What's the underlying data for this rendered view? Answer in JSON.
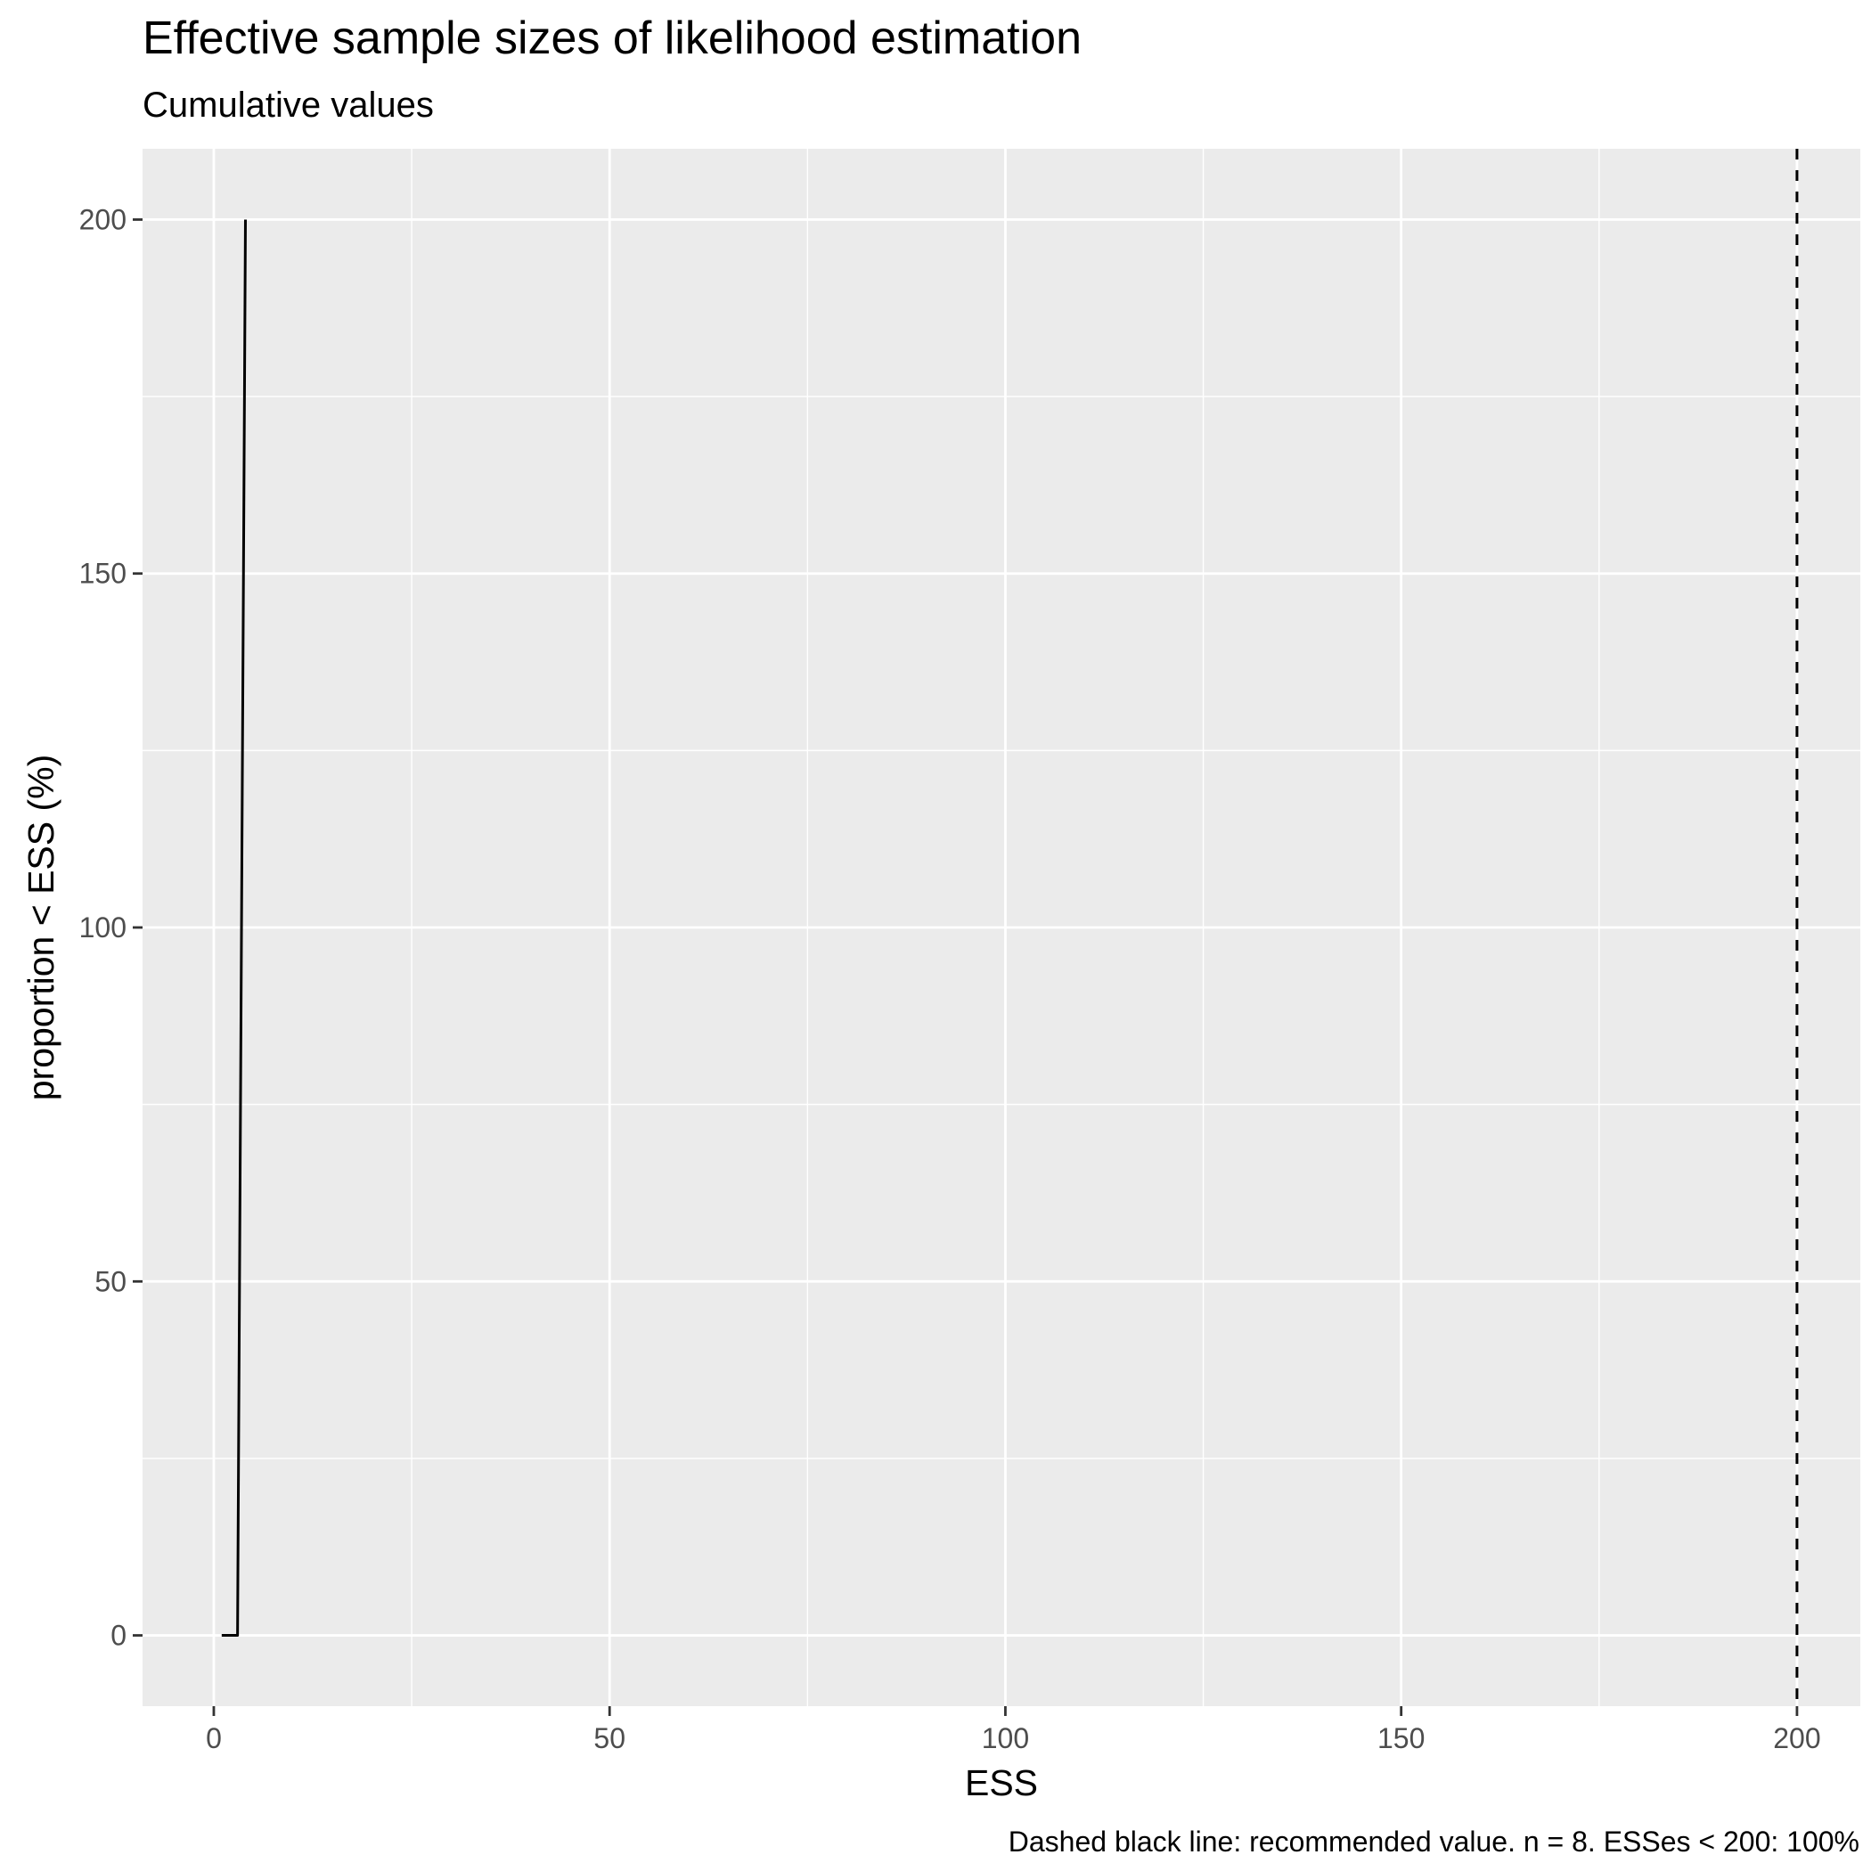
{
  "chart_data": {
    "type": "line",
    "title": "Effective sample sizes of likelihood estimation",
    "subtitle": "Cumulative values",
    "xlabel": "ESS",
    "ylabel": "proportion < ESS (%)",
    "caption": "Dashed black line: recommended value. n =  8. ESSes < 200: 100%",
    "xlim": [
      -9,
      208
    ],
    "ylim": [
      -10,
      210
    ],
    "x_ticks": [
      0,
      50,
      100,
      150,
      200
    ],
    "y_ticks": [
      0,
      50,
      100,
      150,
      200
    ],
    "x_minor": [
      25,
      75,
      125,
      175
    ],
    "y_minor": [
      25,
      75,
      125,
      175
    ],
    "grid": true,
    "series": [
      {
        "points": [
          {
            "x": 1,
            "y": 0
          },
          {
            "x": 3,
            "y": 0
          },
          {
            "x": 4,
            "y": 200
          }
        ],
        "color": "#000000"
      }
    ],
    "reference_line": {
      "axis": "x",
      "value": 200,
      "style": "dashed",
      "color": "#000000"
    },
    "colors": {
      "panel_background": "#EBEBEB",
      "grid": "#FFFFFF",
      "tick_mark": "#333333",
      "tick_label": "#4D4D4D"
    }
  }
}
